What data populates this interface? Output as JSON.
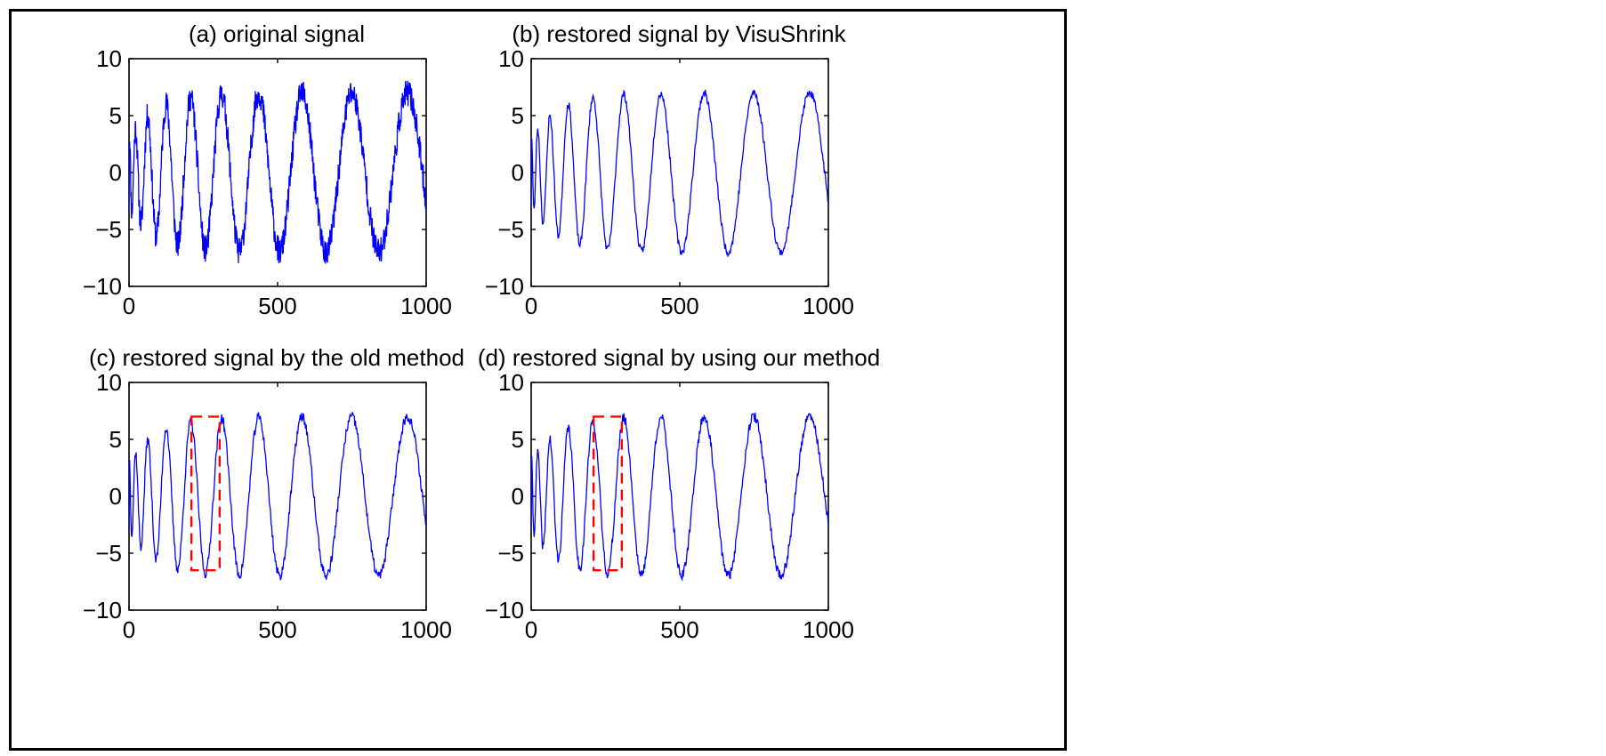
{
  "figure": {
    "line_color": "#0000ff",
    "highlight_color": "#ff0000",
    "frame_color": "#000000"
  },
  "chart_data": [
    {
      "type": "line",
      "title": "(a) original signal",
      "xlim": [
        0,
        1000
      ],
      "ylim": [
        -10,
        10
      ],
      "xticks": [
        0,
        500,
        1000
      ],
      "yticks": [
        10,
        5,
        0,
        -5,
        -10
      ],
      "xtick_labels": [
        "0",
        "500",
        "1000"
      ],
      "ytick_labels": [
        "10",
        "5",
        "0",
        "−5",
        "−10"
      ],
      "xlabel": "",
      "ylabel": "",
      "grid": false,
      "noise": 1.2,
      "seed": 11,
      "highlight": null
    },
    {
      "type": "line",
      "title": "(b) restored signal by VisuShrink",
      "xlim": [
        0,
        1000
      ],
      "ylim": [
        -10,
        10
      ],
      "xticks": [
        0,
        500,
        1000
      ],
      "yticks": [
        10,
        5,
        0,
        -5,
        -10
      ],
      "xtick_labels": [
        "0",
        "500",
        "1000"
      ],
      "ytick_labels": [
        "10",
        "5",
        "0",
        "−5",
        "−10"
      ],
      "xlabel": "",
      "ylabel": "",
      "grid": false,
      "noise": 0.35,
      "seed": 23,
      "highlight": null
    },
    {
      "type": "line",
      "title": "(c) restored signal by the old method",
      "xlim": [
        0,
        1000
      ],
      "ylim": [
        -10,
        10
      ],
      "xticks": [
        0,
        500,
        1000
      ],
      "yticks": [
        10,
        5,
        0,
        -5,
        -10
      ],
      "xtick_labels": [
        "0",
        "500",
        "1000"
      ],
      "ytick_labels": [
        "10",
        "5",
        "0",
        "−5",
        "−10"
      ],
      "xlabel": "",
      "ylabel": "",
      "grid": false,
      "noise": 0.45,
      "seed": 37,
      "highlight": {
        "x0": 210,
        "x1": 305,
        "y0": -6.5,
        "y1": 7.0
      }
    },
    {
      "type": "line",
      "title": "(d) restored signal by using our method",
      "xlim": [
        0,
        1000
      ],
      "ylim": [
        -10,
        10
      ],
      "xticks": [
        0,
        500,
        1000
      ],
      "yticks": [
        10,
        5,
        0,
        -5,
        -10
      ],
      "xtick_labels": [
        "0",
        "500",
        "1000"
      ],
      "ytick_labels": [
        "10",
        "5",
        "0",
        "−5",
        "−10"
      ],
      "xlabel": "",
      "ylabel": "",
      "grid": false,
      "noise": 0.45,
      "seed": 41,
      "highlight": {
        "x0": 210,
        "x1": 305,
        "y0": -6.5,
        "y1": 7.0
      }
    }
  ]
}
